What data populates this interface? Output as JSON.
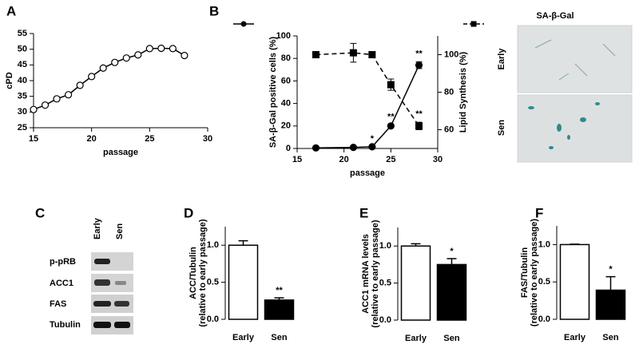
{
  "chart_data": [
    {
      "type": "line",
      "label": "A",
      "xlabel": "passage",
      "ylabel": "cPD",
      "x": [
        15,
        16,
        17,
        18,
        19,
        20,
        21,
        22,
        23,
        24,
        25,
        26,
        27,
        28
      ],
      "xlim": [
        15,
        30
      ],
      "xticks": [
        15,
        20,
        25,
        30
      ],
      "ylim": [
        25,
        55
      ],
      "yticks": [
        25,
        30,
        35,
        40,
        45,
        50,
        55
      ],
      "series": [
        {
          "color": "#000000",
          "marker": "circle",
          "markerfill": "#ffffff",
          "dash": false,
          "values": [
            30.8,
            32.2,
            34.2,
            35.5,
            38.5,
            41.3,
            44,
            45.8,
            47.2,
            48.2,
            50.2,
            50.3,
            50.2,
            48
          ]
        }
      ]
    },
    {
      "type": "line",
      "label": "B",
      "xlabel": "passage",
      "ylabel": "SA-β-Gal positive cells (%)",
      "y2label": "Lipid Synthesis (%)",
      "x": [
        17,
        21,
        23,
        25,
        28
      ],
      "xlim": [
        15,
        30
      ],
      "xticks": [
        15,
        20,
        25,
        30
      ],
      "ylim": [
        0,
        100
      ],
      "yticks": [
        0,
        20,
        40,
        60,
        80,
        100
      ],
      "y2lim": [
        50,
        110
      ],
      "y2ticks": [
        60,
        80,
        100
      ],
      "series": [
        {
          "color": "#000000",
          "marker": "circle",
          "markerfill": "#000000",
          "dash": false,
          "values": [
            0.5,
            1,
            1.5,
            20,
            74
          ],
          "errors": [
            null,
            null,
            null,
            1,
            3
          ],
          "significance": [
            null,
            null,
            "*",
            "**",
            "**"
          ]
        },
        {
          "color": "#000000",
          "marker": "square",
          "markerfill": "#000000",
          "dash": true,
          "axis": "y2",
          "values": [
            100,
            101,
            100,
            84,
            62
          ],
          "errors": [
            null,
            5,
            1,
            3,
            2
          ],
          "significance": [
            null,
            null,
            null,
            null,
            "**"
          ]
        }
      ]
    },
    {
      "type": "bar",
      "label": "D",
      "ylabel": [
        "ACC/Tubulin",
        "(relative to early passage)"
      ],
      "categories": [
        "Early",
        "Sen"
      ],
      "values": [
        1.0,
        0.26
      ],
      "errors": [
        0.06,
        0.03
      ],
      "colors": [
        "#ffffff",
        "#000000"
      ],
      "significance": [
        null,
        "**"
      ],
      "ylim": [
        0,
        1.25
      ],
      "yticks": [
        {
          "value": 0,
          "label": "0.0"
        },
        {
          "value": 0.5,
          "label": "0.5"
        },
        {
          "value": 1,
          "label": "1.0"
        }
      ]
    },
    {
      "type": "bar",
      "label": "E",
      "ylabel": [
        "ACC1 mRNA levels",
        "(relative to early passage)"
      ],
      "categories": [
        "Early",
        "Sen"
      ],
      "values": [
        1.0,
        0.75
      ],
      "errors": [
        0.03,
        0.08
      ],
      "colors": [
        "#ffffff",
        "#000000"
      ],
      "significance": [
        null,
        "*"
      ],
      "ylim": [
        0,
        1.25
      ],
      "yticks": [
        {
          "value": 0,
          "label": "0.0"
        },
        {
          "value": 0.5,
          "label": "0.5"
        },
        {
          "value": 1,
          "label": "1.0"
        }
      ]
    },
    {
      "type": "bar",
      "label": "F",
      "ylabel": [
        "FAS/Tubulin",
        "(relative to early passage)"
      ],
      "categories": [
        "Early",
        "Sen"
      ],
      "values": [
        1.0,
        0.39
      ],
      "errors": [
        0.005,
        0.18
      ],
      "colors": [
        "#ffffff",
        "#000000"
      ],
      "significance": [
        null,
        "*"
      ],
      "ylim": [
        0,
        1.25
      ],
      "yticks": [
        {
          "value": 0,
          "label": "0.0"
        },
        {
          "value": 0.5,
          "label": "0.5"
        },
        {
          "value": 1,
          "label": "1.0"
        }
      ]
    }
  ],
  "micrograph": {
    "title": "SA-β-Gal",
    "rows": [
      "Early",
      "Sen"
    ]
  },
  "blot": {
    "label": "C",
    "lanes": [
      "Early",
      "Sen"
    ],
    "rows": [
      "p-pRB",
      "ACC1",
      "FAS",
      "Tubulin"
    ]
  }
}
